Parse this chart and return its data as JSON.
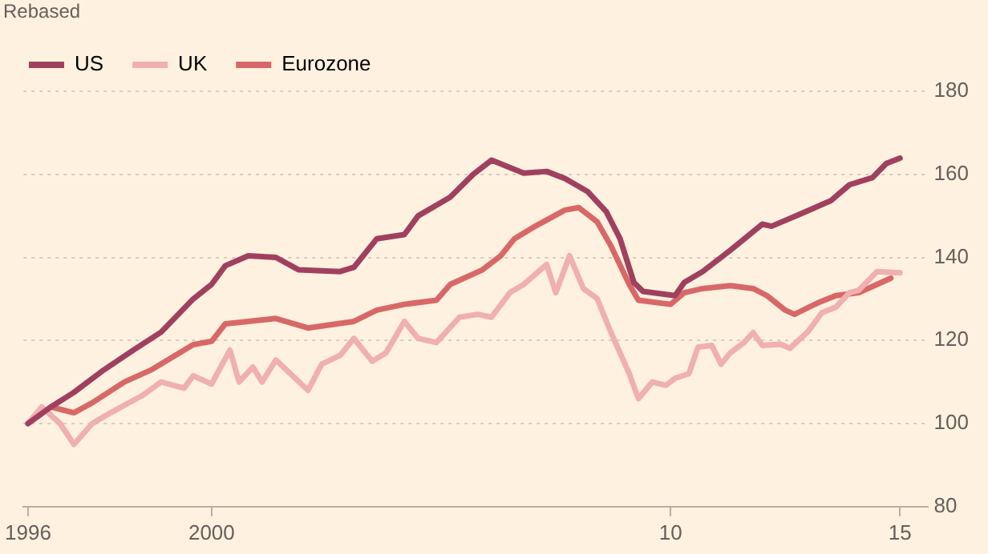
{
  "chart_data": {
    "type": "line",
    "ylabel": "Rebased",
    "legend": "top left",
    "grid": "y",
    "marker": "none",
    "line_style": "solid",
    "xlim": [
      1995.9,
      2015.6
    ],
    "xticks": [
      1996,
      2000,
      {
        "value": 2010,
        "label": "10"
      },
      {
        "value": 2015,
        "label": "15"
      }
    ],
    "ylim": [
      80,
      180
    ],
    "yticks": [
      80,
      100,
      120,
      140,
      160,
      180
    ],
    "series": [
      {
        "name": "US",
        "color": "#a0405f",
        "x": [
          1996.0,
          1996.5,
          1997.0,
          1997.6,
          1998.3,
          1998.9,
          1999.6,
          2000.0,
          2000.3,
          2000.8,
          2001.4,
          2001.9,
          2002.8,
          2003.1,
          2003.6,
          2004.2,
          2004.5,
          2005.2,
          2005.7,
          2006.1,
          2006.8,
          2007.3,
          2007.7,
          2008.2,
          2008.6,
          2008.9,
          2009.2,
          2009.4,
          2010.1,
          2010.3,
          2010.7,
          2011.3,
          2012.0,
          2012.2,
          2012.8,
          2013.5,
          2013.9,
          2014.4,
          2014.7,
          2015.0
        ],
        "values": [
          100,
          104,
          107.5,
          112.5,
          117.7,
          122,
          130,
          133.5,
          138,
          140.4,
          140,
          137,
          136.6,
          137.6,
          144.5,
          145.5,
          150,
          154.5,
          160,
          163.4,
          160.3,
          160.7,
          159,
          155.8,
          151,
          144.5,
          134,
          131.8,
          130.8,
          134,
          136.6,
          141.7,
          148,
          147.5,
          150.3,
          153.7,
          157.5,
          159.2,
          162.6,
          163.9
        ]
      },
      {
        "name": "UK",
        "color": "#f0b0b0",
        "x": [
          1996.0,
          1996.3,
          1996.7,
          1997.0,
          1997.4,
          1997.8,
          1998.5,
          1998.9,
          1999.4,
          1999.6,
          2000.0,
          2000.4,
          2000.6,
          2000.9,
          2001.1,
          2001.4,
          2002.1,
          2002.4,
          2002.8,
          2003.1,
          2003.5,
          2003.8,
          2004.2,
          2004.5,
          2004.9,
          2005.4,
          2005.8,
          2006.1,
          2006.5,
          2006.8,
          2007.3,
          2007.5,
          2007.8,
          2008.1,
          2008.4,
          2008.7,
          2009.1,
          2009.3,
          2009.6,
          2009.9,
          2010.1,
          2010.4,
          2010.6,
          2010.9,
          2011.1,
          2011.3,
          2011.6,
          2011.8,
          2012.0,
          2012.4,
          2012.6,
          2013.0,
          2013.3,
          2013.6,
          2013.9,
          2014.1,
          2014.5,
          2015.0
        ],
        "values": [
          100,
          104,
          100,
          95,
          100,
          102.6,
          106.8,
          110,
          108.5,
          111.5,
          109.5,
          117.7,
          110,
          113.6,
          110,
          115.3,
          108,
          114.3,
          116.4,
          120.5,
          115,
          117,
          124.6,
          120.5,
          119.5,
          125.6,
          126.3,
          125.6,
          131.5,
          133.5,
          138.3,
          131.5,
          140.4,
          132.5,
          130.1,
          122,
          112,
          106,
          110,
          109.2,
          110.9,
          112,
          118.4,
          118.8,
          114.3,
          117,
          119.5,
          121.9,
          118.8,
          119.1,
          118.1,
          122.2,
          126.7,
          128,
          131.5,
          132.1,
          136.6,
          136.3
        ]
      },
      {
        "name": "Eurozone",
        "color": "#d86868",
        "x": [
          1996.0,
          1996.5,
          1997.0,
          1997.4,
          1998.1,
          1998.7,
          1999.6,
          2000.0,
          2000.3,
          2000.8,
          2001.4,
          2002.1,
          2003.1,
          2003.6,
          2004.2,
          2004.9,
          2005.2,
          2005.9,
          2006.3,
          2006.6,
          2007.0,
          2007.3,
          2007.7,
          2008.0,
          2008.4,
          2008.7,
          2009.1,
          2009.3,
          2010.0,
          2010.3,
          2010.7,
          2011.3,
          2011.8,
          2012.1,
          2012.5,
          2012.7,
          2013.2,
          2013.6,
          2014.1,
          2014.5,
          2014.8
        ],
        "values": [
          100,
          104,
          102.6,
          105,
          110,
          113,
          119,
          119.8,
          124,
          124.6,
          125.3,
          123,
          124.6,
          127.3,
          128.7,
          129.7,
          133.5,
          137,
          140.4,
          144.5,
          147.2,
          149,
          151.4,
          152,
          148.6,
          142.8,
          133.5,
          129.7,
          128.7,
          131.5,
          132.5,
          133.2,
          132.5,
          130.8,
          127.3,
          126.3,
          129,
          130.8,
          131.5,
          133.5,
          135
        ]
      }
    ]
  }
}
